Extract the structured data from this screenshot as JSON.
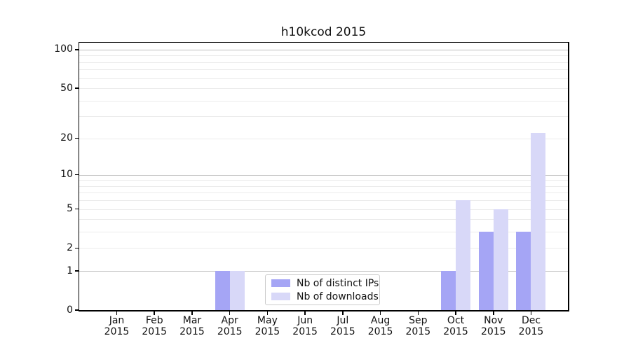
{
  "chart_data": {
    "type": "bar",
    "title": "h10kcod 2015",
    "xlabel": "",
    "ylabel": "",
    "categories": [
      "Jan",
      "Feb",
      "Mar",
      "Apr",
      "May",
      "Jun",
      "Jul",
      "Aug",
      "Sep",
      "Oct",
      "Nov",
      "Dec"
    ],
    "category_year": "2015",
    "series": [
      {
        "name": "Nb of distinct IPs",
        "color": "#a5a5f5",
        "values": [
          0,
          0,
          0,
          1,
          0,
          0,
          0,
          0,
          0,
          1,
          3,
          3
        ]
      },
      {
        "name": "Nb of downloads",
        "color": "#d8d8f8",
        "values": [
          0,
          0,
          0,
          1,
          0,
          0,
          0,
          0,
          0,
          6,
          5,
          22
        ]
      }
    ],
    "yscale": "log1p",
    "ytick_values": [
      0,
      1,
      2,
      5,
      10,
      20,
      50,
      100
    ],
    "ytick_labels": [
      "0",
      "1",
      "2",
      "5",
      "10",
      "20",
      "50",
      "100"
    ],
    "ylim": [
      0,
      115
    ],
    "grid": true,
    "grid_major_values": [
      1,
      10,
      100
    ],
    "grid_minor_values": [
      2,
      3,
      4,
      5,
      6,
      7,
      8,
      9,
      20,
      30,
      40,
      50,
      60,
      70,
      80,
      90
    ],
    "legend_position": "lower center-left",
    "colors": {
      "grid_major": "#c0c0c0",
      "grid_minor": "#ebebeb",
      "axis": "#000000",
      "text": "#111111",
      "background": "#ffffff"
    }
  }
}
